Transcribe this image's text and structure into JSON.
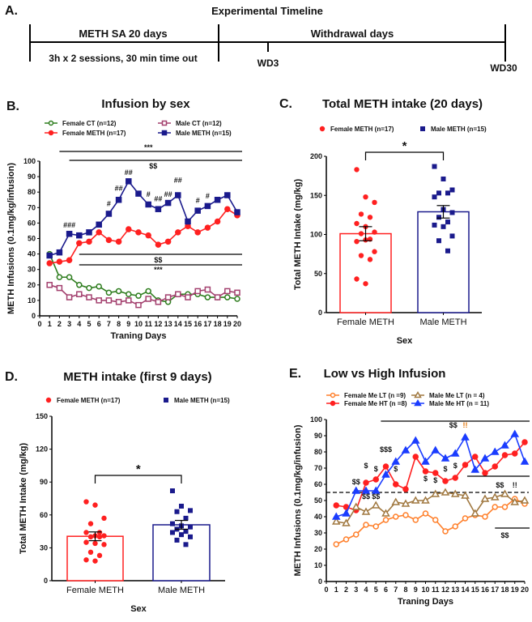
{
  "timeline": {
    "panel_label": "A.",
    "title": "Experimental Timeline",
    "phase1": "METH SA 20 days",
    "phase1_detail": "3h x 2 sessions, 30 min time out",
    "phase2": "Withdrawal days",
    "marker1": "WD3",
    "marker2": "WD30"
  },
  "chart_data": [
    {
      "id": "B",
      "panel_label": "B.",
      "type": "line",
      "title": "Infusion by sex",
      "xlabel": "Traning Days",
      "ylabel": "METH Infusions (0.1mg/kg/infusion)",
      "xlim": [
        0,
        20
      ],
      "ylim": [
        0,
        100
      ],
      "x_ticks": [
        0,
        1,
        2,
        3,
        4,
        5,
        6,
        7,
        8,
        9,
        10,
        11,
        12,
        13,
        14,
        15,
        16,
        17,
        18,
        19,
        20
      ],
      "y_ticks": [
        0,
        10,
        20,
        30,
        40,
        50,
        60,
        70,
        80,
        90,
        100
      ],
      "x": [
        1,
        2,
        3,
        4,
        5,
        6,
        7,
        8,
        9,
        10,
        11,
        12,
        13,
        14,
        15,
        16,
        17,
        18,
        19,
        20
      ],
      "series": [
        {
          "name": "Female CT (n=12)",
          "color": "#2e7d1e",
          "marker": "circle-open",
          "values": [
            40,
            25,
            25,
            20,
            18,
            19,
            15,
            16,
            14,
            13,
            16,
            10,
            9,
            14,
            14,
            14,
            12,
            12,
            12,
            11
          ]
        },
        {
          "name": "Female METH (n=17)",
          "color": "#ff2020",
          "marker": "circle-filled",
          "values": [
            34,
            35,
            36,
            47,
            48,
            54,
            49,
            48,
            56,
            54,
            52,
            46,
            48,
            54,
            58,
            54,
            57,
            61,
            69,
            65
          ]
        },
        {
          "name": "Male CT (n=12)",
          "color": "#a3406e",
          "marker": "square-open",
          "values": [
            20,
            18,
            12,
            14,
            12,
            10,
            10,
            9,
            10,
            7,
            11,
            9,
            12,
            14,
            12,
            16,
            17,
            12,
            16,
            15
          ]
        },
        {
          "name": "Male METH (n=15)",
          "color": "#1a1a8c",
          "marker": "square-filled",
          "values": [
            39,
            41,
            53,
            52,
            54,
            59,
            66,
            75,
            87,
            79,
            72,
            69,
            73,
            78,
            61,
            68,
            71,
            75,
            78,
            67
          ]
        }
      ],
      "annotations": [
        {
          "text": "###",
          "x": 3,
          "y": 57
        },
        {
          "text": "#",
          "x": 7,
          "y": 71
        },
        {
          "text": "##",
          "x": 8,
          "y": 81
        },
        {
          "text": "##",
          "x": 9,
          "y": 91
        },
        {
          "text": "#",
          "x": 11,
          "y": 77
        },
        {
          "text": "##",
          "x": 12,
          "y": 74
        },
        {
          "text": "##",
          "x": 13,
          "y": 77
        },
        {
          "text": "##",
          "x": 14,
          "y": 86
        },
        {
          "text": "#",
          "x": 16,
          "y": 73
        },
        {
          "text": "#",
          "x": 17,
          "y": 76
        }
      ],
      "significance_bars": [
        {
          "label": "***",
          "from_day": 2,
          "to_day": 20,
          "position": "top"
        },
        {
          "label": "$$",
          "from_day": 3,
          "to_day": 20,
          "position": "top"
        },
        {
          "label": "$$",
          "from_day": 4,
          "to_day": 20,
          "position": "middle"
        },
        {
          "label": "***",
          "from_day": 4,
          "to_day": 20,
          "position": "middle"
        }
      ]
    },
    {
      "id": "C",
      "panel_label": "C.",
      "type": "bar",
      "title": "Total METH intake (20 days)",
      "xlabel": "Sex",
      "ylabel": "Total METH Intake (mg/kg)",
      "ylim": [
        0,
        200
      ],
      "y_ticks": [
        0,
        50,
        100,
        150,
        200
      ],
      "categories": [
        "Female METH",
        "Male METH"
      ],
      "legend": [
        "Female METH (n=17)",
        "Male METH (n=15)"
      ],
      "colors": [
        "#ff2020",
        "#1a1a8c"
      ],
      "values": [
        101,
        129
      ],
      "sem": [
        9,
        8
      ],
      "points": [
        [
          183,
          148,
          141,
          126,
          122,
          114,
          110,
          103,
          101,
          94,
          91,
          93,
          78,
          73,
          68,
          43,
          37
        ],
        [
          187,
          171,
          157,
          153,
          153,
          148,
          132,
          128,
          122,
          116,
          112,
          110,
          98,
          92,
          79
        ]
      ],
      "significance": "*"
    },
    {
      "id": "D",
      "panel_label": "D.",
      "type": "bar",
      "title": "METH intake (first 9 days)",
      "xlabel": "Sex",
      "ylabel": "Total METH Intake (mg/kg)",
      "ylim": [
        0,
        150
      ],
      "y_ticks": [
        0,
        30,
        60,
        90,
        120,
        150
      ],
      "categories": [
        "Female METH",
        "Male METH"
      ],
      "legend": [
        "Female METH (n=17)",
        "Male METH (n=15)"
      ],
      "colors": [
        "#ff2020",
        "#1a1a8c"
      ],
      "values": [
        40.5,
        51
      ],
      "sem": [
        4,
        4
      ],
      "points": [
        [
          72,
          69,
          57,
          52,
          44,
          44,
          41,
          41,
          40,
          40,
          35,
          34,
          33,
          26,
          23,
          19,
          18
        ],
        [
          82,
          68,
          64,
          63,
          57,
          52,
          50,
          49,
          47,
          45,
          44,
          42,
          40,
          37,
          33
        ]
      ],
      "significance": "*"
    },
    {
      "id": "E",
      "panel_label": "E.",
      "type": "line",
      "title": "Low vs High Infusion",
      "xlabel": "Traning Days",
      "ylabel": "METH Infusions (0.1mg/kg/infusion)",
      "xlim": [
        0,
        20
      ],
      "ylim": [
        0,
        100
      ],
      "x_ticks": [
        0,
        1,
        2,
        3,
        4,
        5,
        6,
        7,
        8,
        9,
        10,
        11,
        12,
        13,
        14,
        15,
        16,
        17,
        18,
        19,
        20
      ],
      "y_ticks": [
        0,
        10,
        20,
        30,
        40,
        50,
        60,
        70,
        80,
        90,
        100
      ],
      "x": [
        1,
        2,
        3,
        4,
        5,
        6,
        7,
        8,
        9,
        10,
        11,
        12,
        13,
        14,
        15,
        16,
        17,
        18,
        19,
        20
      ],
      "threshold": 55,
      "series": [
        {
          "name": "Female Me LT (n =9)",
          "color": "#ff7f2a",
          "marker": "circle-open",
          "values": [
            23,
            26,
            29,
            35,
            34,
            38,
            40,
            41,
            38,
            42,
            38,
            31,
            34,
            39,
            41,
            40,
            46,
            46,
            51,
            48
          ]
        },
        {
          "name": "Female Me HT (n =8)",
          "color": "#ff2020",
          "marker": "circle-filled",
          "values": [
            47,
            46,
            44,
            61,
            63,
            71,
            60,
            57,
            77,
            68,
            67,
            62,
            64,
            72,
            77,
            67,
            71,
            78,
            79,
            86
          ]
        },
        {
          "name": "Male Me LT (n = 4)",
          "color": "#a07840",
          "marker": "triangle-open",
          "values": [
            37,
            36,
            46,
            43,
            47,
            42,
            49,
            48,
            50,
            50,
            54,
            55,
            54,
            53,
            42,
            51,
            52,
            54,
            49,
            50
          ]
        },
        {
          "name": "Male Me HT (n = 11)",
          "color": "#1a3cff",
          "marker": "triangle-filled",
          "values": [
            40,
            42,
            56,
            56,
            56,
            66,
            74,
            81,
            87,
            74,
            81,
            76,
            79,
            89,
            69,
            76,
            80,
            84,
            91,
            74
          ]
        }
      ],
      "annotations": [
        {
          "text": "$$",
          "x": 3,
          "y": 60
        },
        {
          "text": "$",
          "x": 4,
          "y": 70
        },
        {
          "text": "$",
          "x": 5,
          "y": 68
        },
        {
          "text": "$$$",
          "x": 6,
          "y": 80
        },
        {
          "text": "$",
          "x": 7,
          "y": 68
        },
        {
          "text": "$",
          "x": 10,
          "y": 62
        },
        {
          "text": "$",
          "x": 11,
          "y": 61
        },
        {
          "text": "$",
          "x": 12,
          "y": 68
        },
        {
          "text": "$",
          "x": 13,
          "y": 70
        },
        {
          "text": "$$",
          "x": 4,
          "y": 51
        },
        {
          "text": "$$",
          "x": 5,
          "y": 51
        }
      ],
      "significance_bars": [
        {
          "label": "$$",
          "label2": "!!",
          "from_day": 5.5,
          "to_day": 20,
          "level": 99
        },
        {
          "label": "$$",
          "label2": "!!",
          "from_day": 14.2,
          "to_day": 20,
          "level": 65
        },
        {
          "label": "$$",
          "from_day": 17,
          "to_day": 20,
          "level": 33
        }
      ]
    }
  ]
}
